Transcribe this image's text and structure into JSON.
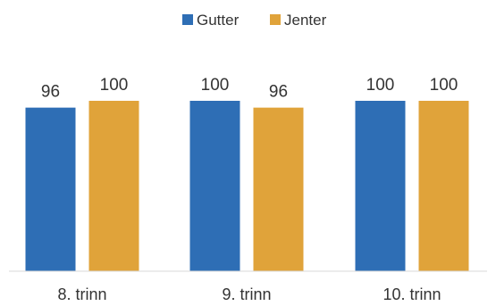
{
  "chart_data": {
    "type": "bar",
    "categories": [
      "8. trinn",
      "9. trinn",
      "10. trinn"
    ],
    "series": [
      {
        "name": "Gutter",
        "values": [
          96,
          100,
          100
        ],
        "color": "#2E6EB5"
      },
      {
        "name": "Jenter",
        "values": [
          100,
          96,
          100
        ],
        "color": "#E0A33A"
      }
    ],
    "ylim": [
      0,
      100
    ],
    "grid": false,
    "legend_position": "top-center",
    "data_labels": true
  }
}
